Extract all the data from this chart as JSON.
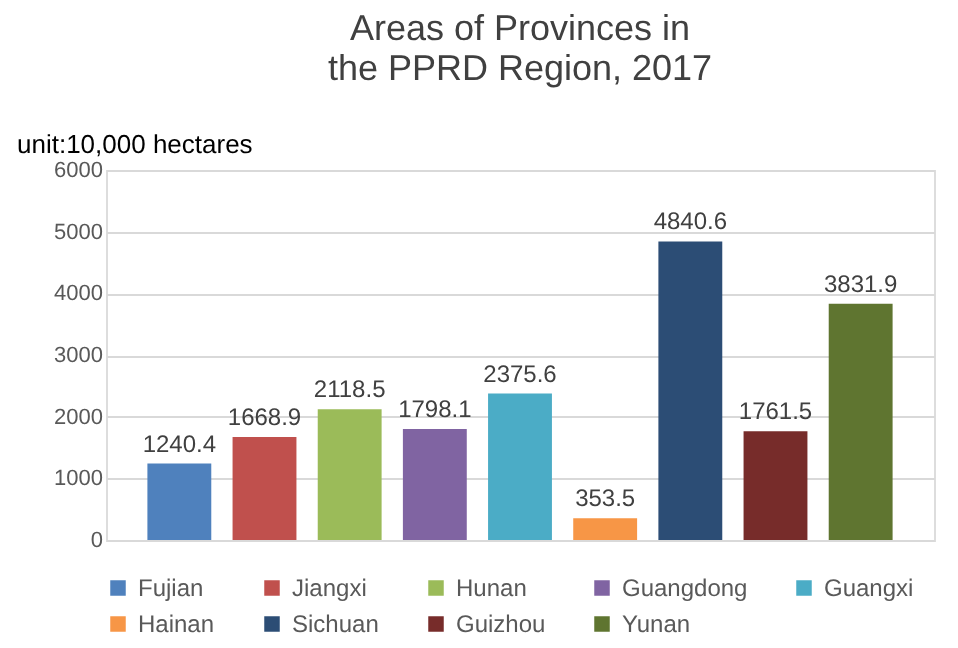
{
  "chart_data": {
    "type": "bar",
    "title": "Areas of Provinces in the PPRD Region, 2017",
    "ylabel": "unit:10,000 hectares",
    "categories": [
      null
    ],
    "series": [
      {
        "name": "Fujian",
        "color": "#4f81bd",
        "values": [
          1240.4
        ]
      },
      {
        "name": "Jiangxi",
        "color": "#c0504d",
        "values": [
          1668.9
        ]
      },
      {
        "name": "Hunan",
        "color": "#9bbb59",
        "values": [
          2118.5
        ]
      },
      {
        "name": "Guangdong",
        "color": "#8064a2",
        "values": [
          1798.1
        ]
      },
      {
        "name": "Guangxi",
        "color": "#4bacc6",
        "values": [
          2375.6
        ]
      },
      {
        "name": "Hainan",
        "color": "#f79646",
        "values": [
          353.5
        ]
      },
      {
        "name": "Sichuan",
        "color": "#2c4d75",
        "values": [
          4840.6
        ]
      },
      {
        "name": "Guizhou",
        "color": "#772c2a",
        "values": [
          1761.5
        ]
      },
      {
        "name": "Yunan",
        "color": "#5f7530",
        "values": [
          3831.9
        ]
      }
    ],
    "ylim": [
      0,
      6000
    ],
    "yticks": [
      0,
      1000,
      2000,
      3000,
      4000,
      5000,
      6000
    ],
    "grid": "y",
    "legend": "bottom",
    "data_labels": true,
    "tick_labels": "y"
  }
}
